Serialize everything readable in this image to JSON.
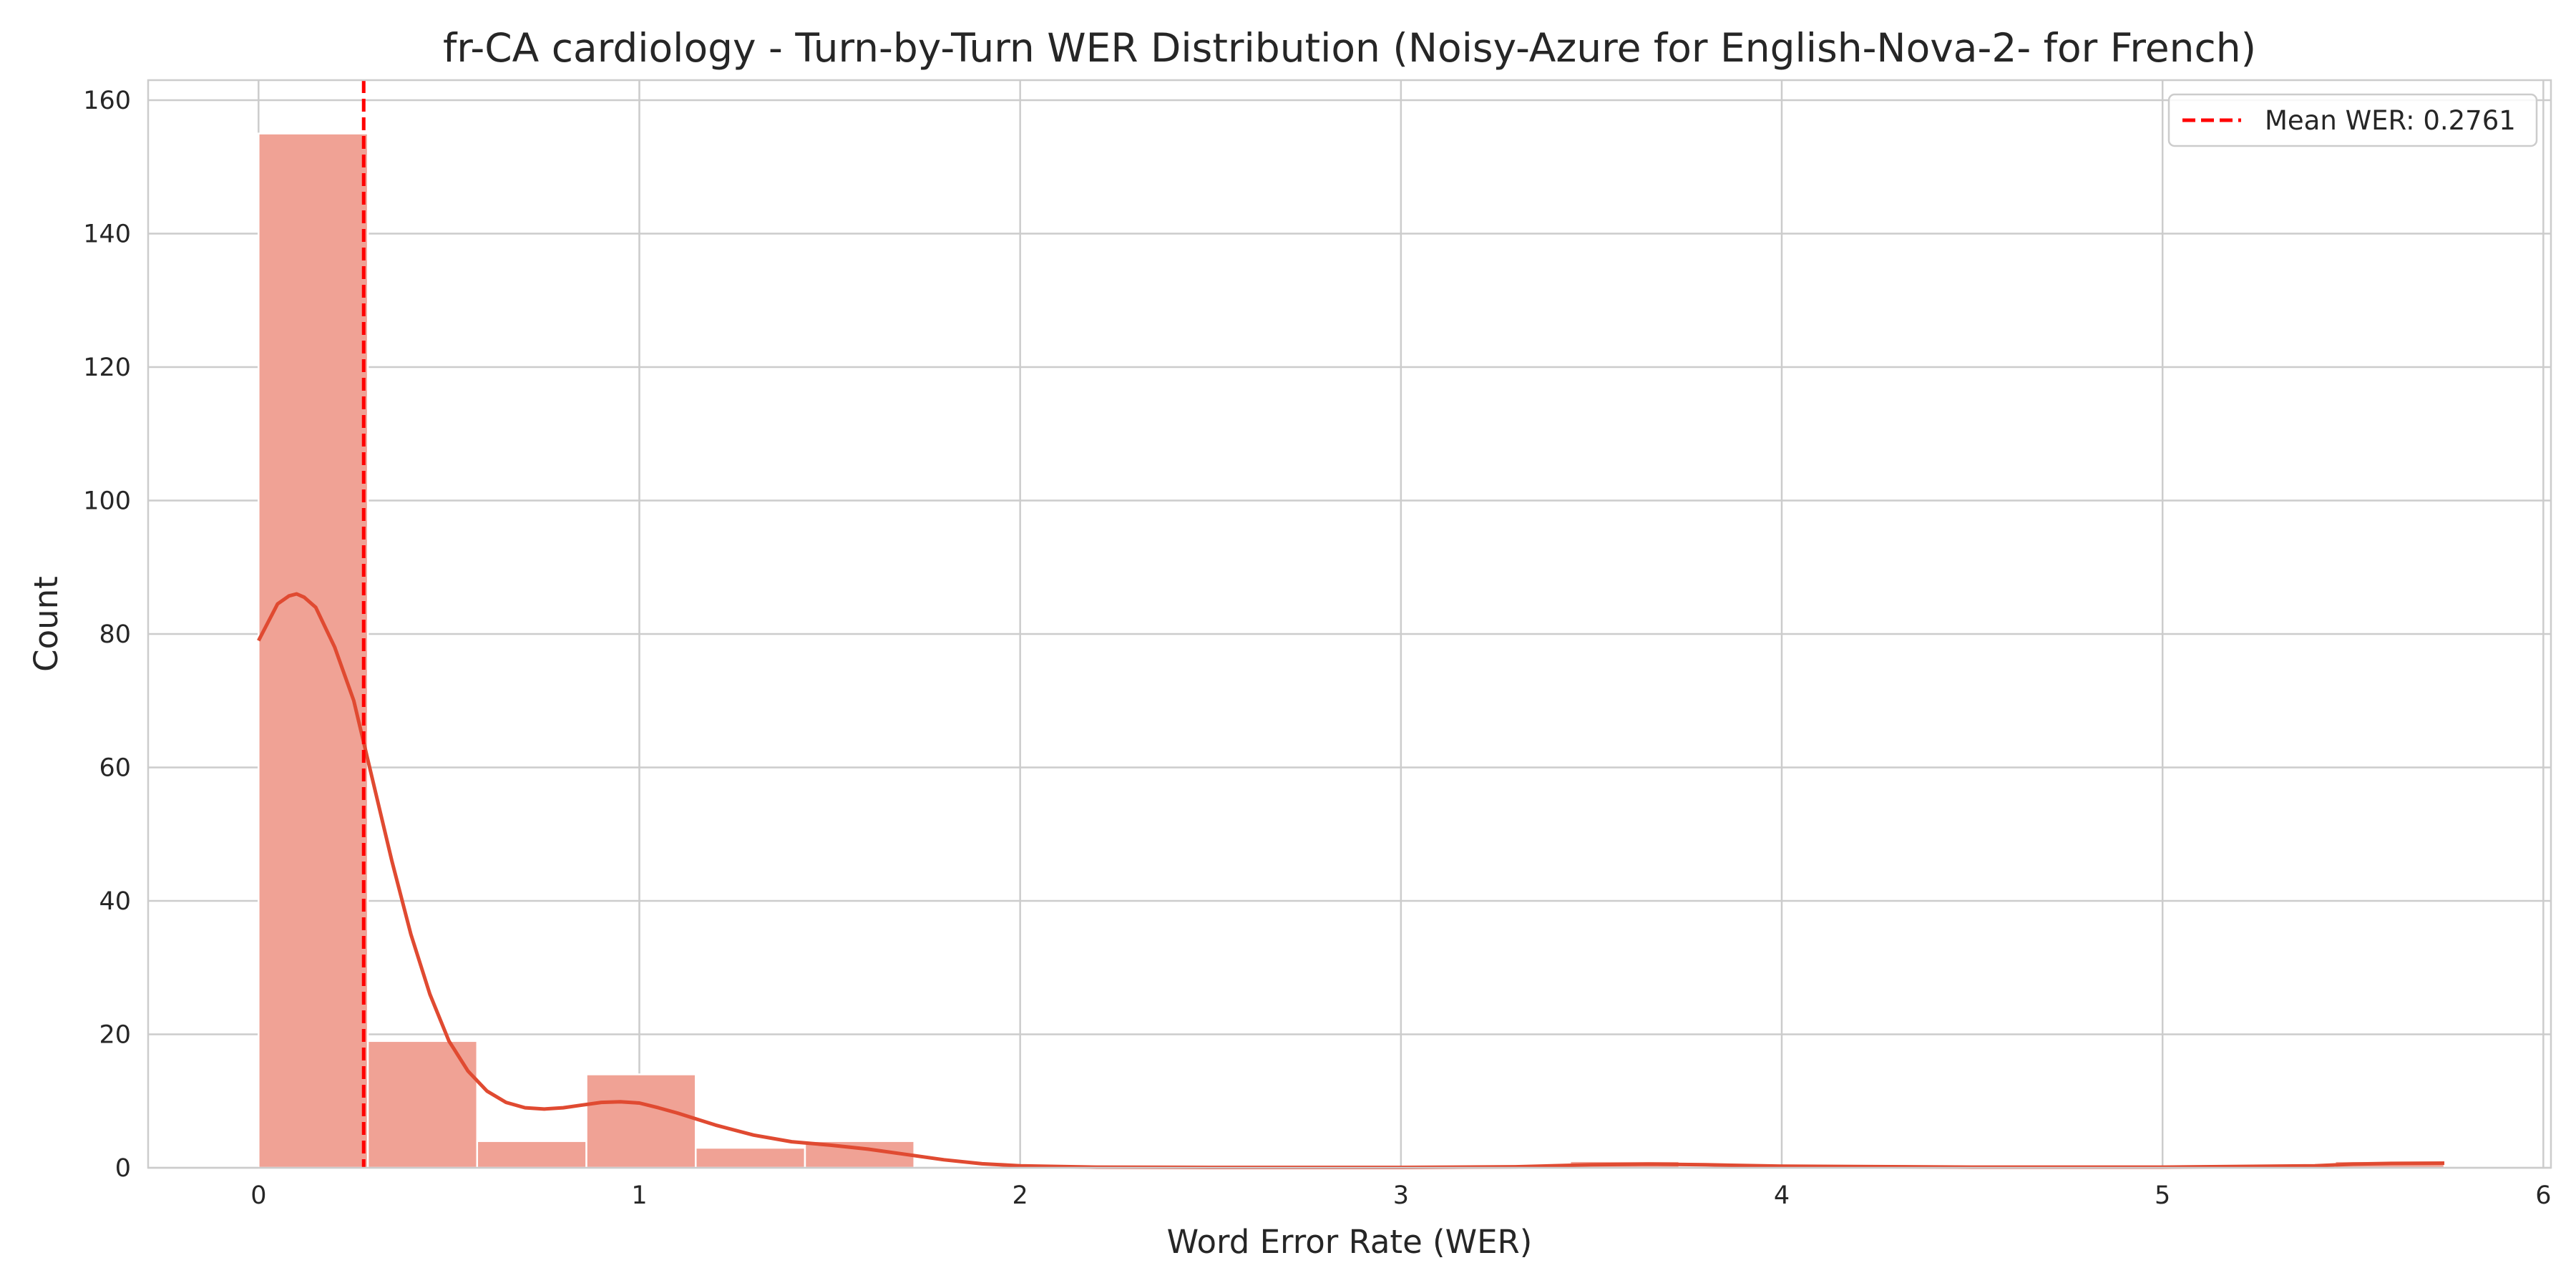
{
  "chart_data": {
    "type": "histogram",
    "title": "fr-CA cardiology - Turn-by-Turn WER Distribution (Noisy-Azure for English-Nova-2- for French)",
    "xlabel": "Word Error Rate (WER)",
    "ylabel": "Count",
    "xlim": [
      -0.29,
      6.02
    ],
    "ylim": [
      0,
      163
    ],
    "xticks": [
      0,
      1,
      2,
      3,
      4,
      5,
      6
    ],
    "yticks": [
      0,
      20,
      40,
      60,
      80,
      100,
      120,
      140,
      160
    ],
    "grid": true,
    "legend_position": "top-right",
    "bins": [
      {
        "x0": 0.0,
        "x1": 0.287,
        "count": 155
      },
      {
        "x0": 0.287,
        "x1": 0.574,
        "count": 19
      },
      {
        "x0": 0.574,
        "x1": 0.861,
        "count": 4
      },
      {
        "x0": 0.861,
        "x1": 1.148,
        "count": 14
      },
      {
        "x0": 1.148,
        "x1": 1.435,
        "count": 3
      },
      {
        "x0": 1.435,
        "x1": 1.722,
        "count": 4
      },
      {
        "x0": 1.722,
        "x1": 2.009,
        "count": 0
      },
      {
        "x0": 2.009,
        "x1": 2.296,
        "count": 0
      },
      {
        "x0": 2.296,
        "x1": 2.583,
        "count": 0
      },
      {
        "x0": 2.583,
        "x1": 2.87,
        "count": 0
      },
      {
        "x0": 2.87,
        "x1": 3.157,
        "count": 0
      },
      {
        "x0": 3.157,
        "x1": 3.444,
        "count": 0
      },
      {
        "x0": 3.444,
        "x1": 3.731,
        "count": 1
      },
      {
        "x0": 3.731,
        "x1": 4.018,
        "count": 0
      },
      {
        "x0": 4.018,
        "x1": 4.305,
        "count": 0
      },
      {
        "x0": 4.305,
        "x1": 4.592,
        "count": 0
      },
      {
        "x0": 4.592,
        "x1": 4.879,
        "count": 0
      },
      {
        "x0": 4.879,
        "x1": 5.166,
        "count": 0
      },
      {
        "x0": 5.166,
        "x1": 5.453,
        "count": 0
      },
      {
        "x0": 5.453,
        "x1": 5.74,
        "count": 1
      }
    ],
    "kde": {
      "x": [
        0.0,
        0.05,
        0.08,
        0.1,
        0.12,
        0.15,
        0.2,
        0.25,
        0.3,
        0.35,
        0.4,
        0.45,
        0.5,
        0.55,
        0.6,
        0.65,
        0.7,
        0.75,
        0.8,
        0.85,
        0.9,
        0.95,
        1.0,
        1.05,
        1.1,
        1.2,
        1.3,
        1.4,
        1.5,
        1.6,
        1.7,
        1.8,
        1.9,
        2.0,
        2.2,
        2.5,
        3.0,
        3.3,
        3.5,
        3.65,
        3.8,
        4.0,
        4.5,
        5.0,
        5.4,
        5.5,
        5.6,
        5.74
      ],
      "y": [
        79,
        84.5,
        85.7,
        86,
        85.5,
        84,
        78,
        70,
        58,
        46,
        35,
        26,
        19,
        14.5,
        11.5,
        9.8,
        9,
        8.8,
        9,
        9.4,
        9.8,
        9.9,
        9.7,
        9,
        8.2,
        6.4,
        4.9,
        3.9,
        3.4,
        2.8,
        2,
        1.2,
        0.6,
        0.3,
        0.1,
        0.05,
        0.05,
        0.15,
        0.45,
        0.55,
        0.45,
        0.25,
        0.1,
        0.1,
        0.3,
        0.55,
        0.65,
        0.7
      ]
    },
    "mean_line": {
      "x": 0.2761,
      "label": "Mean WER: 0.2761"
    },
    "colors": {
      "bar_fill": "#f0a295",
      "bar_edge": "#ffffff",
      "kde_line": "#e04a31",
      "mean_line": "#ff0000",
      "grid": "#cccccc",
      "axes_edge": "#cccccc"
    }
  }
}
